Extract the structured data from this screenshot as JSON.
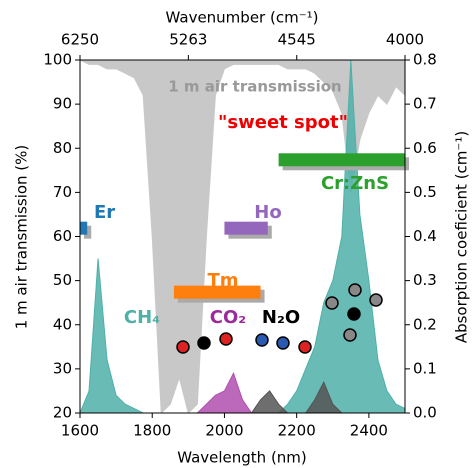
{
  "chart_data": {
    "type": "area",
    "title_top": "Wavenumber (cm⁻¹)",
    "xlabel": "Wavelength (nm)",
    "ylabel": "1 m air transmission (%)",
    "y2label": "Absorption coeficient (cm⁻¹)",
    "xlim": [
      1600,
      2500
    ],
    "xticks": [
      1600,
      1800,
      2000,
      2200,
      2400
    ],
    "x2lim": [
      6250,
      4000
    ],
    "x2ticks": [
      6250,
      5263,
      4545,
      4000
    ],
    "ylim": [
      20,
      100
    ],
    "yticks": [
      20,
      30,
      40,
      50,
      60,
      70,
      80,
      90,
      100
    ],
    "y2lim": [
      0,
      0.8
    ],
    "y2ticks": [
      {
        "value": 0,
        "label": "0.0"
      },
      0.1,
      0.2,
      0.3,
      0.4,
      0.5,
      0.6,
      0.7,
      0.8
    ],
    "x": [
      1600,
      1625,
      1650,
      1675,
      1700,
      1725,
      1750,
      1775,
      1800,
      1825,
      1850,
      1875,
      1900,
      1925,
      1950,
      1975,
      2000,
      2025,
      2050,
      2075,
      2100,
      2125,
      2150,
      2175,
      2200,
      2225,
      2250,
      2275,
      2300,
      2325,
      2350,
      2375,
      2400,
      2425,
      2450,
      2475,
      2500
    ],
    "series": [
      {
        "name": "1 m air transmission",
        "color": "#c8c8c8",
        "values": [
          100,
          99,
          99,
          98,
          98,
          97,
          96,
          92,
          60,
          20,
          22,
          28,
          20,
          22,
          60,
          92,
          98,
          99,
          99,
          99,
          99,
          99,
          99,
          98,
          98,
          98,
          97,
          95,
          93,
          88,
          70,
          82,
          88,
          92,
          90,
          94,
          92
        ]
      },
      {
        "name": "CH₄",
        "color": "#4fb0a8",
        "axis": "y2",
        "values": [
          0,
          0.05,
          0.35,
          0.12,
          0.04,
          0.02,
          0.01,
          0,
          0,
          0,
          0,
          0,
          0,
          0,
          0,
          0,
          0,
          0,
          0,
          0,
          0,
          0,
          0,
          0.02,
          0.05,
          0.1,
          0.15,
          0.25,
          0.3,
          0.4,
          0.8,
          0.45,
          0.3,
          0.12,
          0.05,
          0.02,
          0.01
        ]
      },
      {
        "name": "CO₂",
        "color": "#b04fb0",
        "axis": "y2",
        "values": [
          0,
          0,
          0,
          0,
          0,
          0,
          0,
          0,
          0,
          0,
          0,
          0,
          0,
          0,
          0.02,
          0.04,
          0.05,
          0.09,
          0.03,
          0,
          0,
          0,
          0,
          0,
          0,
          0,
          0,
          0,
          0,
          0,
          0,
          0,
          0,
          0,
          0,
          0,
          0
        ]
      },
      {
        "name": "N₂O",
        "color": "#555555",
        "axis": "y2",
        "values": [
          0,
          0,
          0,
          0,
          0,
          0,
          0,
          0,
          0,
          0,
          0,
          0,
          0,
          0,
          0,
          0,
          0,
          0,
          0,
          0,
          0.03,
          0.05,
          0.02,
          0,
          0,
          0,
          0.03,
          0.07,
          0.02,
          0,
          0,
          0,
          0,
          0,
          0,
          0,
          0
        ]
      }
    ],
    "bands": [
      {
        "name": "Er",
        "color": "#1f77b4",
        "start": 1600,
        "end": 1620,
        "y": 62
      },
      {
        "name": "Tm",
        "color": "#ff7f0e",
        "start": 1860,
        "end": 2100,
        "y": 47.5
      },
      {
        "name": "Ho",
        "color": "#9467bd",
        "start": 2000,
        "end": 2120,
        "y": 62
      },
      {
        "name": "Cr:ZnS",
        "color": "#2ca02c",
        "start": 2150,
        "end": 2500,
        "y": 77.5
      }
    ],
    "annotations": [
      "\"sweet spot\""
    ]
  }
}
